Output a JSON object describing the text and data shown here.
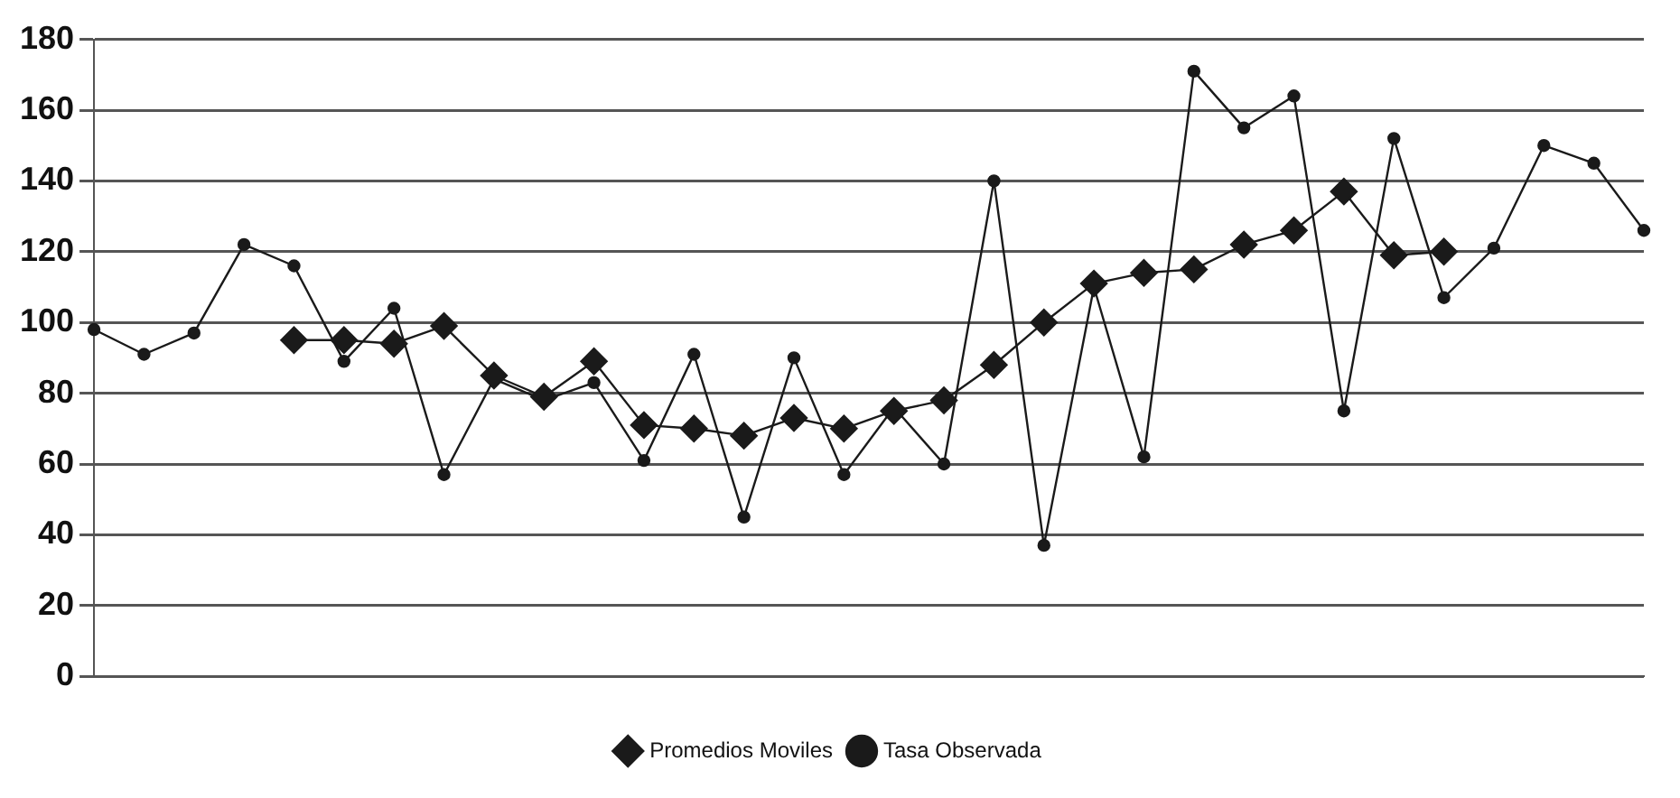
{
  "chart_data": {
    "type": "line",
    "categories": [
      null,
      null,
      null,
      null,
      null,
      null,
      null,
      null,
      null,
      null,
      null,
      null,
      null,
      null,
      null,
      null,
      null,
      null,
      null,
      null,
      null,
      null,
      null,
      null,
      null,
      null,
      null,
      null,
      null,
      null,
      null,
      null
    ],
    "series": [
      {
        "name": "Tasa Observada",
        "color": "#1a1a1a",
        "marker": "circle",
        "values": [
          98,
          91,
          97,
          122,
          116,
          89,
          104,
          57,
          84,
          78,
          83,
          61,
          91,
          45,
          90,
          57,
          76,
          60,
          140,
          37,
          110,
          62,
          171,
          155,
          164,
          75,
          152,
          107,
          121,
          150,
          145,
          126
        ]
      },
      {
        "name": "Promedios Moviles",
        "color": "#1a1a1a",
        "marker": "diamond",
        "values": [
          null,
          null,
          null,
          null,
          95,
          95,
          94,
          99,
          85,
          79,
          89,
          71,
          70,
          68,
          73,
          70,
          75,
          78,
          88,
          100,
          111,
          114,
          115,
          122,
          126,
          137,
          119,
          120,
          null,
          null,
          null,
          null
        ]
      }
    ],
    "ylim": [
      0,
      180
    ],
    "yticks": [
      0,
      20,
      40,
      60,
      80,
      100,
      120,
      140,
      160,
      180
    ],
    "grid": "y",
    "legend": "bottom",
    "line_style": "solid"
  }
}
